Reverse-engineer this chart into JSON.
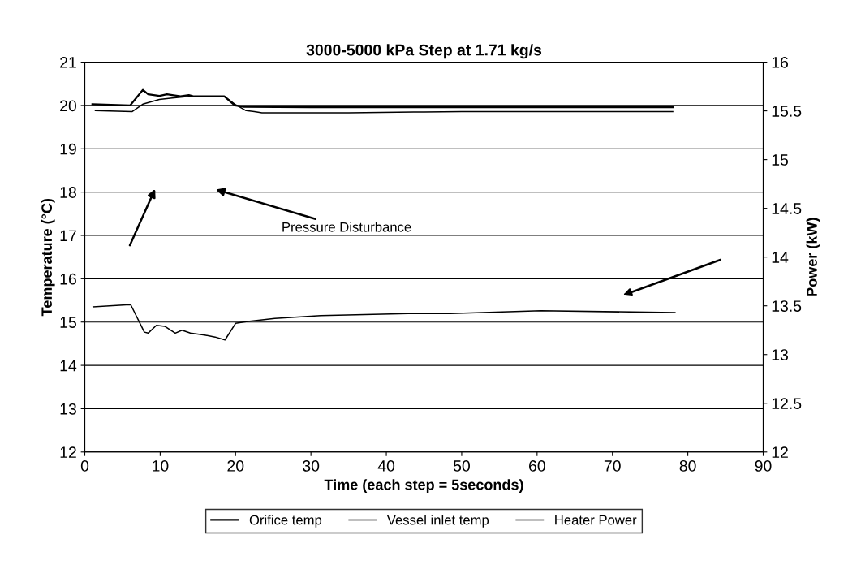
{
  "chart_data": {
    "type": "line",
    "title": "3000-5000 kPa Step at 1.71 kg/s",
    "xlabel": "Time (each step = 5seconds)",
    "ylabel": "Temperature (°C)",
    "y2label": "Power (kW)",
    "xlim": [
      0,
      90
    ],
    "xticks": [
      0,
      10,
      20,
      30,
      40,
      50,
      60,
      70,
      80,
      90
    ],
    "ylim": [
      12,
      21
    ],
    "yticks": [
      12,
      13,
      14,
      15,
      16,
      17,
      18,
      19,
      20,
      21
    ],
    "y2lim": [
      12,
      16
    ],
    "y2ticks": [
      12,
      12.5,
      13,
      13.5,
      14,
      14.5,
      15,
      15.5,
      16
    ],
    "grid": "y",
    "legend": "bottom",
    "marker": "none",
    "line_style": "solid",
    "annotations": [
      "Pressure Disturbance"
    ],
    "series": [
      {
        "name": "Orifice temp",
        "color": "#000000",
        "x": [
          1,
          6,
          7.7,
          8.4,
          9.9,
          10.9,
          11.6,
          12.7,
          13.8,
          14.5,
          18.5,
          19.9,
          21,
          30,
          45,
          60,
          78
        ],
        "values": [
          20.03,
          20,
          20.36,
          20.26,
          20.22,
          20.26,
          20.24,
          20.21,
          20.24,
          20.21,
          20.21,
          20,
          19.97,
          19.96,
          19.96,
          19.96,
          19.96
        ]
      },
      {
        "name": "Vessel inlet temp",
        "color": "#000000",
        "x": [
          1.4,
          6.3,
          7.7,
          9.9,
          11.6,
          13.8,
          18.5,
          19.9,
          21.4,
          22.5,
          23.5,
          35,
          45,
          50,
          60,
          78
        ],
        "values": [
          19.88,
          19.86,
          20.03,
          20.14,
          20.17,
          20.21,
          20.21,
          20.03,
          19.88,
          19.86,
          19.83,
          19.83,
          19.85,
          19.86,
          19.86,
          19.86
        ]
      },
      {
        "name": "Heater Power",
        "color": "#000000",
        "axis": "y2",
        "x": [
          1.1,
          5.5,
          6.1,
          7.9,
          8.4,
          9.5,
          10.6,
          12,
          12.9,
          14,
          15.9,
          17.3,
          18.6,
          20,
          21.6,
          25.2,
          31.3,
          42.9,
          48.5,
          60.5,
          78.3
        ],
        "values": [
          13.49,
          13.51,
          13.51,
          13.23,
          13.22,
          13.3,
          13.29,
          13.22,
          13.25,
          13.22,
          13.2,
          13.18,
          13.15,
          13.32,
          13.34,
          13.37,
          13.4,
          13.42,
          13.42,
          13.45,
          13.43
        ]
      }
    ]
  }
}
